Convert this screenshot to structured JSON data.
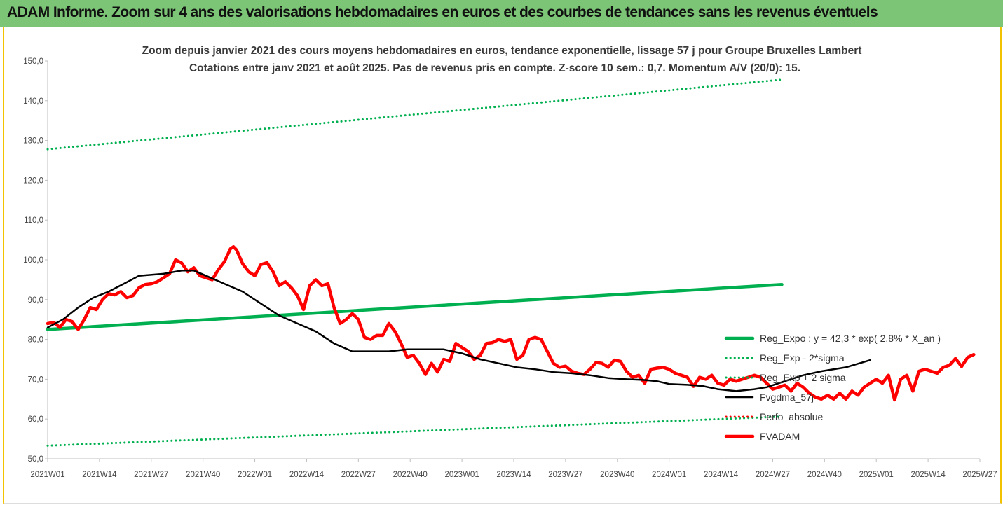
{
  "header": {
    "title": "ADAM Informe. Zoom sur 4 ans des valorisations hebdomadaires en euros et des courbes de tendances sans les revenus éventuels"
  },
  "colors": {
    "header_bg": "#7cc576",
    "border": "#f2c200",
    "reg_expo": "#00b050",
    "fvgdma": "#000000",
    "perfo": "#ff0000",
    "fvadam": "#ff0000"
  },
  "chart_data": {
    "type": "line",
    "title": "Zoom depuis janvier 2021 des cours moyens hebdomadaires en euros, tendance exponentielle, lissage 57 j pour Groupe Bruxelles Lambert",
    "subtitle": "Cotations entre janv 2021 et août 2025.  Pas de revenus pris en compte. Z-score 10 sem.: 0,7. Momentum A/V (20/0): 15.",
    "xlabel": "",
    "ylabel": "",
    "ylim": [
      50,
      150
    ],
    "yticks": [
      "50,0",
      "60,0",
      "70,0",
      "80,0",
      "90,0",
      "100,0",
      "110,0",
      "120,0",
      "130,0",
      "140,0",
      "150,0"
    ],
    "xticks": [
      "2021W01",
      "2021W14",
      "2021W27",
      "2021W40",
      "2022W01",
      "2022W14",
      "2022W27",
      "2022W40",
      "2023W01",
      "2023W14",
      "2023W27",
      "2023W40",
      "2024W01",
      "2024W14",
      "2024W27",
      "2024W40",
      "2025W01",
      "2025W14",
      "2025W27"
    ],
    "grid": false,
    "legend_position": "right",
    "series": [
      {
        "name": "Reg_Expo : y = 42,3 * exp( 2,8% *  X_an )",
        "style": "solid-thick",
        "color": "#00b050",
        "points": [
          [
            0,
            82.5
          ],
          [
            241,
            93.8
          ]
        ]
      },
      {
        "name": "Reg_Exp - 2*sigma",
        "style": "dotted",
        "color": "#00b050",
        "points": [
          [
            0,
            53.3
          ],
          [
            241,
            60.6
          ]
        ]
      },
      {
        "name": "Reg_Exp + 2 sigma",
        "style": "dotted",
        "color": "#00b050",
        "points": [
          [
            0,
            127.8
          ],
          [
            241,
            145.3
          ]
        ]
      },
      {
        "name": "Fvgdma_57j",
        "style": "solid",
        "color": "#000000",
        "points": [
          [
            0,
            83
          ],
          [
            5,
            85
          ],
          [
            10,
            88
          ],
          [
            15,
            90.5
          ],
          [
            20,
            92
          ],
          [
            25,
            94
          ],
          [
            30,
            96
          ],
          [
            38,
            96.5
          ],
          [
            44,
            97.3
          ],
          [
            48,
            97.3
          ],
          [
            52,
            96
          ],
          [
            58,
            94
          ],
          [
            64,
            92
          ],
          [
            70,
            89
          ],
          [
            76,
            86
          ],
          [
            82,
            84
          ],
          [
            88,
            82
          ],
          [
            94,
            79
          ],
          [
            100,
            77
          ],
          [
            112,
            77
          ],
          [
            118,
            77.5
          ],
          [
            130,
            77.5
          ],
          [
            136,
            76.5
          ],
          [
            142,
            75
          ],
          [
            148,
            74
          ],
          [
            154,
            73
          ],
          [
            160,
            72.5
          ],
          [
            166,
            71.8
          ],
          [
            172,
            71.5
          ],
          [
            178,
            71
          ],
          [
            184,
            70.3
          ],
          [
            190,
            70
          ],
          [
            196,
            69.8
          ],
          [
            200,
            69.5
          ],
          [
            204,
            68.8
          ],
          [
            210,
            68.6
          ],
          [
            215,
            68.3
          ],
          [
            220,
            67.5
          ],
          [
            226,
            67
          ],
          [
            232,
            67.5
          ],
          [
            236,
            68
          ],
          [
            242,
            69.5
          ],
          [
            248,
            71
          ],
          [
            254,
            72
          ],
          [
            262,
            73
          ],
          [
            270,
            74.8
          ]
        ]
      },
      {
        "name": "Perfo_absolue",
        "style": "dotted",
        "color": "#ff0000",
        "points": []
      },
      {
        "name": "FVADAM",
        "style": "solid-thick",
        "color": "#ff0000",
        "points": [
          [
            0,
            84
          ],
          [
            2,
            84.3
          ],
          [
            4,
            83
          ],
          [
            6,
            85
          ],
          [
            8,
            84.5
          ],
          [
            10,
            82.5
          ],
          [
            12,
            85
          ],
          [
            14,
            88
          ],
          [
            16,
            87.5
          ],
          [
            18,
            90
          ],
          [
            20,
            91.5
          ],
          [
            22,
            91.2
          ],
          [
            24,
            92
          ],
          [
            26,
            90.5
          ],
          [
            28,
            91
          ],
          [
            30,
            93
          ],
          [
            32,
            93.8
          ],
          [
            34,
            94
          ],
          [
            36,
            94.5
          ],
          [
            38,
            95.5
          ],
          [
            40,
            96.5
          ],
          [
            42,
            100
          ],
          [
            44,
            99.2
          ],
          [
            46,
            97
          ],
          [
            48,
            98
          ],
          [
            50,
            96
          ],
          [
            52,
            95.5
          ],
          [
            54,
            95
          ],
          [
            56,
            97.5
          ],
          [
            58,
            99.5
          ],
          [
            60,
            102.8
          ],
          [
            61,
            103.3
          ],
          [
            62,
            102.5
          ],
          [
            64,
            99
          ],
          [
            66,
            97
          ],
          [
            68,
            96
          ],
          [
            70,
            98.8
          ],
          [
            72,
            99.3
          ],
          [
            74,
            97
          ],
          [
            76,
            93.5
          ],
          [
            78,
            94.5
          ],
          [
            80,
            93
          ],
          [
            82,
            91
          ],
          [
            84,
            87.5
          ],
          [
            86,
            93.5
          ],
          [
            88,
            95
          ],
          [
            90,
            93.5
          ],
          [
            92,
            94
          ],
          [
            94,
            88
          ],
          [
            96,
            84
          ],
          [
            98,
            85
          ],
          [
            100,
            86.5
          ],
          [
            102,
            85
          ],
          [
            104,
            80.5
          ],
          [
            106,
            80
          ],
          [
            108,
            81
          ],
          [
            110,
            81
          ],
          [
            112,
            84
          ],
          [
            114,
            82
          ],
          [
            116,
            79
          ],
          [
            118,
            75.5
          ],
          [
            120,
            76
          ],
          [
            122,
            74
          ],
          [
            124,
            71.2
          ],
          [
            126,
            74
          ],
          [
            128,
            71.8
          ],
          [
            130,
            75
          ],
          [
            132,
            74.5
          ],
          [
            134,
            79
          ],
          [
            136,
            78
          ],
          [
            138,
            77
          ],
          [
            140,
            75
          ],
          [
            142,
            76
          ],
          [
            144,
            79
          ],
          [
            146,
            79.2
          ],
          [
            148,
            80
          ],
          [
            150,
            79.5
          ],
          [
            152,
            80
          ],
          [
            154,
            75
          ],
          [
            156,
            76
          ],
          [
            158,
            80
          ],
          [
            160,
            80.5
          ],
          [
            162,
            80
          ],
          [
            164,
            77
          ],
          [
            166,
            74
          ],
          [
            168,
            73
          ],
          [
            170,
            73.3
          ],
          [
            172,
            72
          ],
          [
            174,
            71.5
          ],
          [
            176,
            71.2
          ],
          [
            178,
            72.5
          ],
          [
            180,
            74.2
          ],
          [
            182,
            74
          ],
          [
            184,
            73
          ],
          [
            186,
            74.8
          ],
          [
            188,
            74.5
          ],
          [
            190,
            72
          ],
          [
            192,
            70.5
          ],
          [
            194,
            71
          ],
          [
            196,
            69
          ],
          [
            198,
            72.5
          ],
          [
            200,
            72.8
          ],
          [
            202,
            73
          ],
          [
            204,
            72.5
          ],
          [
            206,
            71.5
          ],
          [
            208,
            71
          ],
          [
            210,
            70.5
          ],
          [
            212,
            68.2
          ],
          [
            214,
            70.5
          ],
          [
            216,
            70
          ],
          [
            218,
            71
          ],
          [
            220,
            69
          ],
          [
            222,
            68.5
          ],
          [
            224,
            70
          ],
          [
            226,
            69.5
          ],
          [
            228,
            70
          ],
          [
            230,
            70.5
          ],
          [
            232,
            71
          ],
          [
            234,
            70.5
          ],
          [
            236,
            69
          ],
          [
            238,
            67.5
          ],
          [
            240,
            68
          ],
          [
            242,
            68.5
          ],
          [
            244,
            67
          ],
          [
            246,
            69
          ],
          [
            248,
            68
          ],
          [
            250,
            66.5
          ],
          [
            252,
            65.5
          ],
          [
            254,
            65
          ],
          [
            256,
            66
          ],
          [
            258,
            65
          ],
          [
            260,
            66.5
          ],
          [
            262,
            65
          ],
          [
            264,
            67
          ],
          [
            266,
            66
          ],
          [
            268,
            68
          ],
          [
            270,
            69
          ],
          [
            272,
            70
          ],
          [
            274,
            69
          ],
          [
            276,
            71
          ],
          [
            278,
            64.8
          ],
          [
            280,
            70
          ],
          [
            282,
            71
          ],
          [
            284,
            67
          ],
          [
            286,
            72
          ],
          [
            288,
            72.5
          ],
          [
            290,
            72
          ],
          [
            292,
            71.5
          ],
          [
            294,
            73
          ],
          [
            296,
            73.5
          ],
          [
            298,
            75.2
          ],
          [
            300,
            73.2
          ],
          [
            302,
            75.5
          ],
          [
            304,
            76.2
          ]
        ]
      }
    ]
  }
}
